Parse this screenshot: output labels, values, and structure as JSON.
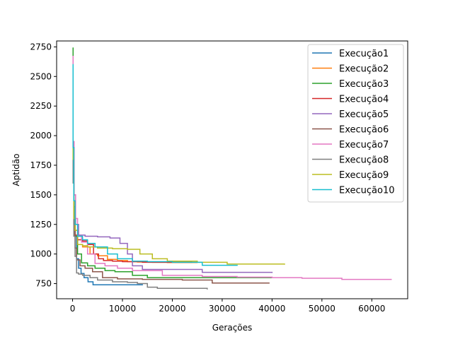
{
  "chart_data": {
    "type": "line",
    "title": "",
    "xlabel": "Gerações",
    "ylabel": "Aptidão",
    "xlim": [
      -3200,
      67200
    ],
    "ylim": [
      622,
      2800
    ],
    "xticks": [
      0,
      10000,
      20000,
      30000,
      40000,
      50000,
      60000
    ],
    "yticks": [
      750,
      1000,
      1250,
      1500,
      1750,
      2000,
      2250,
      2500,
      2750
    ],
    "grid": false,
    "legend_position": "top-right",
    "series": [
      {
        "name": "Execução1",
        "color": "#1f77b4",
        "step": true,
        "x": [
          0,
          100,
          250,
          500,
          800,
          1200,
          1700,
          2300,
          3100,
          4100,
          14100
        ],
        "y": [
          2560,
          1850,
          1400,
          1150,
          960,
          880,
          835,
          800,
          765,
          740,
          740
        ]
      },
      {
        "name": "Execução2",
        "color": "#ff7f0e",
        "step": true,
        "x": [
          0,
          100,
          250,
          500,
          1000,
          2000,
          3500,
          5000,
          7000,
          9000,
          11000,
          13000,
          16000,
          19000,
          25000
        ],
        "y": [
          2600,
          1900,
          1450,
          1200,
          1080,
          1060,
          1000,
          985,
          955,
          945,
          935,
          932,
          930,
          928,
          925
        ]
      },
      {
        "name": "Execução3",
        "color": "#2ca02c",
        "step": true,
        "x": [
          0,
          100,
          250,
          500,
          1000,
          1800,
          3000,
          4500,
          6500,
          8500,
          12000,
          15000,
          40000
        ],
        "y": [
          2740,
          1950,
          1400,
          1150,
          1000,
          925,
          900,
          880,
          860,
          850,
          820,
          800,
          800
        ]
      },
      {
        "name": "Execução4",
        "color": "#d62728",
        "step": true,
        "x": [
          0,
          100,
          250,
          500,
          1000,
          2000,
          3000,
          4200,
          5200,
          6200,
          8000,
          10000,
          14000,
          24000
        ],
        "y": [
          2630,
          1700,
          1300,
          1160,
          1120,
          1110,
          1080,
          1000,
          960,
          945,
          940,
          935,
          930,
          930
        ]
      },
      {
        "name": "Execução5",
        "color": "#9467bd",
        "step": true,
        "x": [
          0,
          100,
          300,
          600,
          1200,
          2500,
          5000,
          7500,
          9500,
          11000,
          12000,
          14000,
          20000,
          26000,
          40000
        ],
        "y": [
          2620,
          1900,
          1500,
          1250,
          1160,
          1150,
          1145,
          1135,
          1090,
          1000,
          900,
          870,
          870,
          845,
          840
        ]
      },
      {
        "name": "Execução6",
        "color": "#8c564b",
        "step": true,
        "x": [
          0,
          100,
          250,
          500,
          800,
          1500,
          2500,
          4000,
          6000,
          9000,
          14000,
          22000,
          28000,
          39500
        ],
        "y": [
          2580,
          1650,
          1250,
          1050,
          950,
          900,
          880,
          850,
          800,
          790,
          785,
          780,
          755,
          755
        ]
      },
      {
        "name": "Execução7",
        "color": "#e377c2",
        "step": true,
        "x": [
          0,
          100,
          300,
          600,
          1000,
          1800,
          3000,
          4500,
          6500,
          9000,
          12000,
          18000,
          26000,
          33000,
          40000,
          46000,
          54000,
          64000
        ],
        "y": [
          2670,
          1950,
          1500,
          1300,
          1150,
          1100,
          1000,
          920,
          900,
          880,
          860,
          820,
          810,
          805,
          800,
          795,
          785,
          785
        ]
      },
      {
        "name": "Execução8",
        "color": "#7f7f7f",
        "step": true,
        "x": [
          0,
          100,
          250,
          500,
          800,
          1200,
          2000,
          3500,
          5000,
          8000,
          11000,
          13000,
          15000,
          17000,
          27000
        ],
        "y": [
          2500,
          1600,
          1150,
          980,
          840,
          830,
          820,
          800,
          780,
          765,
          760,
          750,
          720,
          710,
          700
        ]
      },
      {
        "name": "Execução9",
        "color": "#bcbd22",
        "step": true,
        "x": [
          0,
          100,
          250,
          500,
          1000,
          2000,
          3000,
          5000,
          8000,
          11000,
          13500,
          16000,
          19000,
          25000,
          31000,
          42500
        ],
        "y": [
          2560,
          1800,
          1300,
          1200,
          1080,
          1070,
          1060,
          1050,
          1045,
          1040,
          1000,
          960,
          940,
          930,
          915,
          910
        ]
      },
      {
        "name": "Execução10",
        "color": "#17becf",
        "step": true,
        "x": [
          0,
          100,
          250,
          500,
          1000,
          2000,
          3000,
          4500,
          7000,
          9000,
          12000,
          15000,
          20000,
          26000,
          33000
        ],
        "y": [
          2600,
          1900,
          1450,
          1250,
          1150,
          1120,
          1090,
          1060,
          1000,
          960,
          940,
          935,
          930,
          905,
          900
        ]
      }
    ]
  }
}
